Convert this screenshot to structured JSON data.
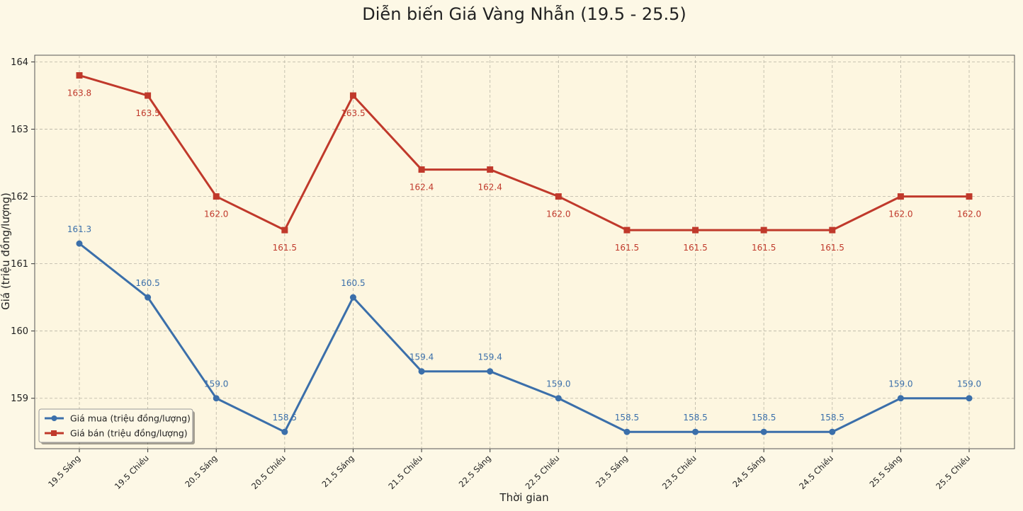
{
  "chart_data": {
    "type": "line",
    "title": "Diễn biến Giá Vàng Nhẫn (19.5 - 25.5)",
    "xlabel": "Thời gian",
    "ylabel": "Giá (triệu đồng/lượng)",
    "categories": [
      "19.5 Sáng",
      "19.5 Chiều",
      "20.5 Sáng",
      "20.5 Chiều",
      "21.5 Sáng",
      "21.5 Chiều",
      "22.5 Sáng",
      "22.5 Chiều",
      "23.5 Sáng",
      "23.5 Chiều",
      "24.5 Sáng",
      "24.5 Chiều",
      "25.5 Sáng",
      "25.5 Chiều"
    ],
    "series": [
      {
        "name": "Giá mua (triệu đồng/lượng)",
        "color": "#3b6faa",
        "marker": "circle",
        "values": [
          161.3,
          160.5,
          159.0,
          158.5,
          160.5,
          159.4,
          159.4,
          159.0,
          158.5,
          158.5,
          158.5,
          158.5,
          159.0,
          159.0
        ],
        "labels": [
          "161.3",
          "160.5",
          "159.0",
          "158.5",
          "160.5",
          "159.4",
          "159.4",
          "159.0",
          "158.5",
          "158.5",
          "158.5",
          "158.5",
          "159.0",
          "159.0"
        ]
      },
      {
        "name": "Giá bán (triệu đồng/lượng)",
        "color": "#c0392b",
        "marker": "square",
        "values": [
          163.8,
          163.5,
          162.0,
          161.5,
          163.5,
          162.4,
          162.4,
          162.0,
          161.5,
          161.5,
          161.5,
          161.5,
          162.0,
          162.0
        ],
        "labels": [
          "163.8",
          "163.5",
          "162.0",
          "161.5",
          "163.5",
          "162.4",
          "162.4",
          "162.0",
          "161.5",
          "161.5",
          "161.5",
          "161.5",
          "162.0",
          "162.0"
        ]
      }
    ],
    "yticks": [
      "159",
      "160",
      "161",
      "162",
      "163",
      "164"
    ],
    "ylim": [
      158.25,
      164.1
    ],
    "grid": true,
    "legend": "bottom-left"
  }
}
